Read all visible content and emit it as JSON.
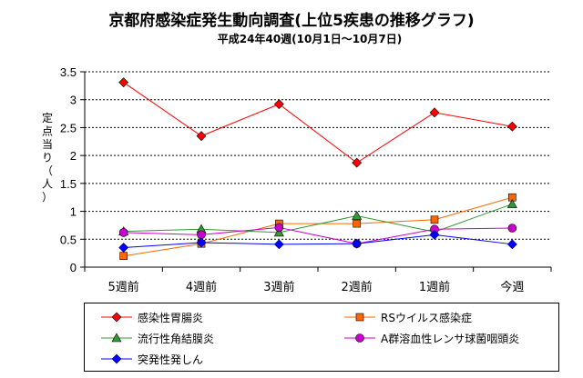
{
  "title": "京都府感染症発生動向調査(上位5疾患の推移グラフ)",
  "subtitle": "平成24年40週(10月1日～10月7日)",
  "chart_data": {
    "type": "line",
    "ylabel_lines": [
      "定点当り",
      "（人）"
    ],
    "ylim": [
      0,
      3.5
    ],
    "yticks": [
      "0",
      "0.5",
      "1",
      "1.5",
      "2",
      "2.5",
      "3",
      "3.5"
    ],
    "categories": [
      "5週前",
      "4週前",
      "3週前",
      "2週前",
      "1週前",
      "今週"
    ],
    "grid": true,
    "legend_position": "bottom",
    "series": [
      {
        "name": "感染性胃腸炎",
        "color": "#ff0000",
        "marker": "diamond",
        "values": [
          3.31,
          2.35,
          2.92,
          1.87,
          2.77,
          2.52
        ]
      },
      {
        "name": "RSウイルス感染症",
        "color": "#ff6600",
        "marker": "square",
        "values": [
          0.2,
          0.42,
          0.78,
          0.78,
          0.85,
          1.25
        ]
      },
      {
        "name": "流行性角結膜炎",
        "color": "#339933",
        "marker": "triangle",
        "values": [
          0.64,
          0.68,
          0.62,
          0.92,
          0.63,
          1.13
        ]
      },
      {
        "name": "A群溶血性レンサ球菌咽頭炎",
        "color": "#cc00cc",
        "marker": "circle",
        "values": [
          0.62,
          0.58,
          0.71,
          0.42,
          0.68,
          0.7
        ]
      },
      {
        "name": "突発性発しん",
        "color": "#0000ff",
        "marker": "diamond",
        "values": [
          0.35,
          0.44,
          0.41,
          0.42,
          0.58,
          0.41
        ]
      }
    ]
  }
}
